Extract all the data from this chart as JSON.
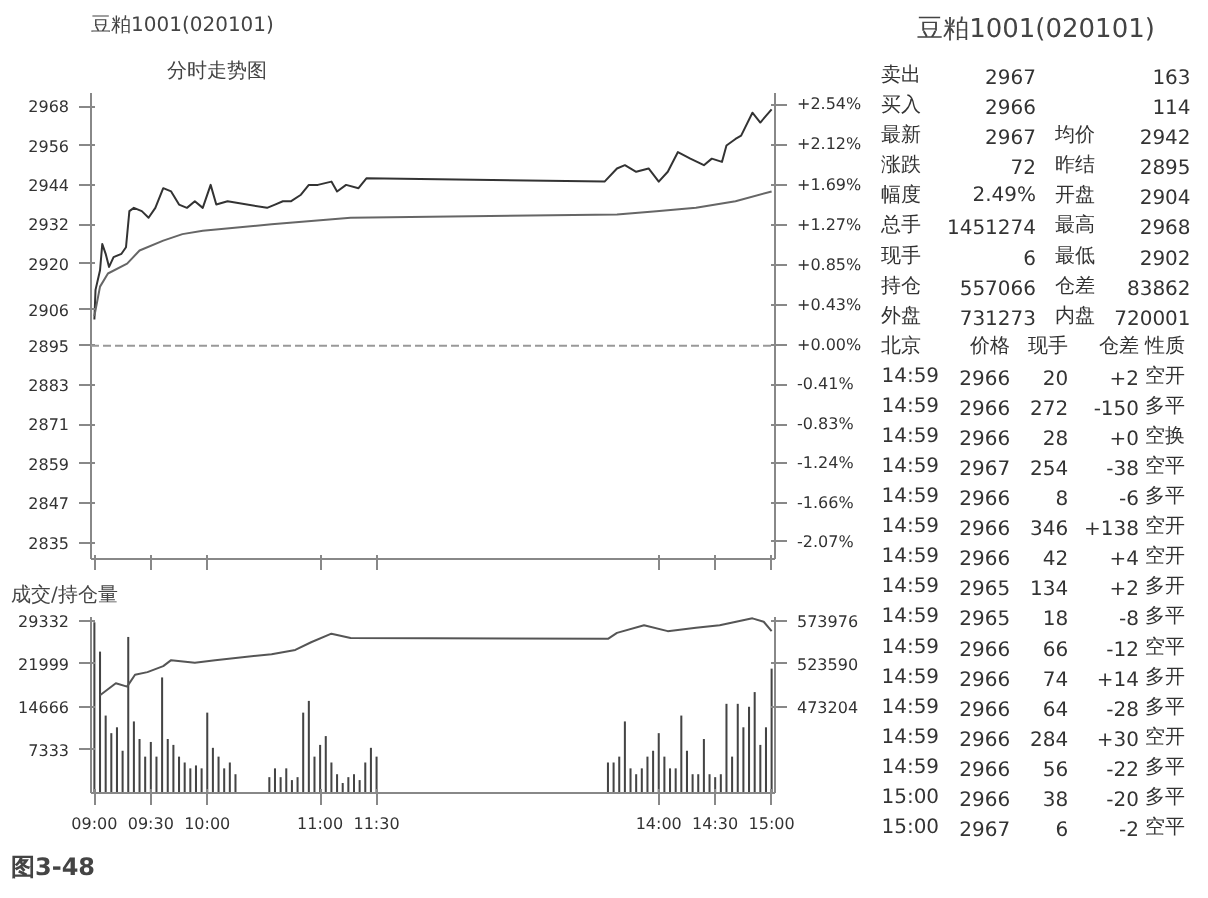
{
  "chart_data": [
    {
      "type": "line",
      "title": "豆粕1001(020101)",
      "subtitle": "分时走势图",
      "xlim": [
        8.97,
        15.03
      ],
      "xticks": [
        {
          "value": 9,
          "label": null
        },
        {
          "value": 9.5,
          "label": null
        },
        {
          "value": 10,
          "label": null
        },
        {
          "value": 11,
          "label": null
        },
        {
          "value": 11.5,
          "label": null
        },
        {
          "value": 14,
          "label": null
        },
        {
          "value": 14.5,
          "label": null
        },
        {
          "value": 15,
          "label": null
        }
      ],
      "ylim": [
        2830,
        2972
      ],
      "yticks": [
        2835,
        2847,
        2859,
        2871,
        2883,
        2895,
        2906,
        2920,
        2932,
        2944,
        2956,
        2968
      ],
      "y2lim": [
        -2.25,
        2.66
      ],
      "y2ticks": [
        {
          "value": -2.07,
          "label": "-2.07%"
        },
        {
          "value": -1.66,
          "label": "-1.66%"
        },
        {
          "value": -1.24,
          "label": "-1.24%"
        },
        {
          "value": -0.83,
          "label": "-0.83%"
        },
        {
          "value": -0.41,
          "label": "-0.41%"
        },
        {
          "value": 0.0,
          "label": "+0.00%"
        },
        {
          "value": 0.43,
          "label": "+0.43%"
        },
        {
          "value": 0.85,
          "label": "+0.85%"
        },
        {
          "value": 1.27,
          "label": "+1.27%"
        },
        {
          "value": 1.69,
          "label": "+1.69%"
        },
        {
          "value": 2.12,
          "label": "+2.12%"
        },
        {
          "value": 2.54,
          "label": "+2.54%"
        }
      ],
      "grid": false,
      "tick_labels": "y",
      "ref_lines": [
        {
          "axis": "y",
          "value": 2895,
          "label": null,
          "color": "#999999",
          "line_style": "dashed"
        }
      ],
      "series": [
        {
          "color": "#333333",
          "x": [
            9.0,
            9.01,
            9.05,
            9.07,
            9.1,
            9.13,
            9.17,
            9.24,
            9.28,
            9.31,
            9.35,
            9.42,
            9.48,
            9.54,
            9.61,
            9.68,
            9.75,
            9.82,
            9.89,
            9.96,
            10.03,
            10.08,
            10.18,
            10.53,
            10.6,
            10.67,
            10.74,
            10.83,
            10.9,
            10.98,
            11.1,
            11.15,
            11.23,
            11.34,
            11.41,
            13.52,
            13.63,
            13.7,
            13.8,
            13.91,
            14.0,
            14.08,
            14.17,
            14.28,
            14.4,
            14.47,
            14.56,
            14.6,
            14.68,
            14.73,
            14.83,
            14.9,
            14.95,
            15.0
          ],
          "values": [
            2903,
            2912,
            2918,
            2926,
            2923,
            2919,
            2922,
            2923,
            2925,
            2936,
            2937,
            2936,
            2934,
            2937,
            2943,
            2942,
            2938,
            2937,
            2939,
            2937,
            2944,
            2938,
            2939,
            2937,
            2938,
            2939,
            2939,
            2941,
            2944,
            2944,
            2945,
            2942,
            2944,
            2943,
            2946,
            2945,
            2949,
            2950,
            2948,
            2949,
            2945,
            2948,
            2954,
            2952,
            2950,
            2952,
            2951,
            2956,
            2958,
            2959,
            2966,
            2963,
            2965,
            2967
          ]
        },
        {
          "color": "#666666",
          "x": [
            9.0,
            9.05,
            9.12,
            9.29,
            9.4,
            9.61,
            9.78,
            9.96,
            10.57,
            10.92,
            11.27,
            13.63,
            13.98,
            14.33,
            14.68,
            15.0
          ],
          "values": [
            2904,
            2913,
            2917,
            2920,
            2924,
            2927,
            2929,
            2930,
            2932,
            2933,
            2934,
            2935,
            2936,
            2937,
            2939,
            2942
          ]
        }
      ]
    },
    {
      "type": "bar",
      "title": "成交/持仓量",
      "xlim": [
        8.97,
        15.03
      ],
      "xticks": [
        {
          "value": 9,
          "label": "09:00"
        },
        {
          "value": 9.5,
          "label": "09:30"
        },
        {
          "value": 10,
          "label": "10:00"
        },
        {
          "value": 11,
          "label": "11:00"
        },
        {
          "value": 11.5,
          "label": "11:30"
        },
        {
          "value": 14,
          "label": "14:00"
        },
        {
          "value": 14.5,
          "label": "14:30"
        },
        {
          "value": 15,
          "label": "15:00"
        }
      ],
      "ylim": [
        0,
        30000
      ],
      "yticks": [
        7333,
        14666,
        21999,
        29332
      ],
      "y2lim": [
        372432,
        578562
      ],
      "y2ticks": [
        473204,
        523590,
        573976
      ],
      "grid": false,
      "annotations": [
        "图3-48"
      ],
      "series": [
        {
          "type": "bar",
          "color": "#444444",
          "x": [
            9.0,
            9.05,
            9.1,
            9.15,
            9.2,
            9.25,
            9.3,
            9.35,
            9.4,
            9.45,
            9.5,
            9.55,
            9.6,
            9.65,
            9.7,
            9.75,
            9.8,
            9.85,
            9.9,
            9.95,
            10.0,
            10.05,
            10.1,
            10.15,
            10.2,
            10.25,
            10.55,
            10.6,
            10.65,
            10.7,
            10.75,
            10.8,
            10.85,
            10.9,
            10.95,
            11.0,
            11.05,
            11.1,
            11.15,
            11.2,
            11.25,
            11.3,
            11.35,
            11.4,
            11.45,
            11.5,
            13.55,
            13.6,
            13.65,
            13.7,
            13.75,
            13.8,
            13.85,
            13.9,
            13.95,
            14.0,
            14.05,
            14.1,
            14.15,
            14.2,
            14.25,
            14.3,
            14.35,
            14.4,
            14.45,
            14.5,
            14.55,
            14.6,
            14.65,
            14.7,
            14.75,
            14.8,
            14.85,
            14.9,
            14.95,
            15.0
          ],
          "values": [
            29100,
            24100,
            13200,
            10200,
            11200,
            7200,
            26600,
            12200,
            9200,
            6200,
            8700,
            6200,
            19700,
            9200,
            8200,
            6200,
            5200,
            4200,
            4700,
            4200,
            13700,
            7700,
            6200,
            4200,
            5200,
            3200,
            2700,
            4200,
            2700,
            4200,
            2200,
            2700,
            13700,
            15700,
            6200,
            8200,
            9700,
            5200,
            3200,
            1700,
            2700,
            3200,
            2200,
            5200,
            7700,
            6200,
            5200,
            5200,
            6200,
            12200,
            4200,
            3200,
            4200,
            6200,
            7200,
            10200,
            6200,
            4200,
            4200,
            13200,
            7200,
            3200,
            3200,
            9200,
            3200,
            2700,
            3200,
            15200,
            6200,
            15200,
            11200,
            14700,
            17200,
            8200,
            11200,
            21200
          ]
        },
        {
          "type": "line",
          "axis": "y2",
          "color": "#555555",
          "x": [
            9.05,
            9.19,
            9.29,
            9.36,
            9.47,
            9.61,
            9.68,
            9.89,
            10.07,
            10.57,
            10.78,
            10.92,
            11.1,
            11.27,
            13.55,
            13.63,
            13.87,
            14.08,
            14.33,
            14.54,
            14.83,
            14.93,
            15.0
          ],
          "values": [
            487000,
            501000,
            497000,
            511000,
            514000,
            521000,
            528000,
            525000,
            528000,
            535000,
            540000,
            549000,
            559000,
            554000,
            553000,
            560000,
            569000,
            562000,
            566000,
            569000,
            577000,
            573000,
            562000
          ]
        }
      ]
    },
    {
      "type": "other",
      "title": "豆粕1001(020101)",
      "annotations": [
        "卖出 2967 163",
        "买入 2966 114",
        "最新 2967 均价 2942",
        "涨跌 72 昨结 2895",
        "幅度 2.49% 开盘 2904",
        "总手 1451274 最高 2968",
        "现手 6 最低 2902",
        "持仓 557066 仓差 83862",
        "外盘 731273 内盘 720001",
        "北京 价格 现手 仓差 性质",
        "14:59 2966 20 +2 空开",
        "14:59 2966 272 -150 多平",
        "14:59 2966 28 +0 空换",
        "14:59 2967 254 -38 空平",
        "14:59 2966 8 -6 多平",
        "14:59 2966 346 +138 空开",
        "14:59 2966 42 +4 空开",
        "14:59 2965 134 +2 多开",
        "14:59 2965 18 -8 多平",
        "14:59 2966 66 -12 空平",
        "14:59 2966 74 +14 多开",
        "14:59 2966 64 -28 多平",
        "14:59 2966 284 +30 空开",
        "14:59 2966 56 -22 多平",
        "15:00 2966 38 -20 多平",
        "15:00 2967 6 -2 空平"
      ]
    }
  ]
}
